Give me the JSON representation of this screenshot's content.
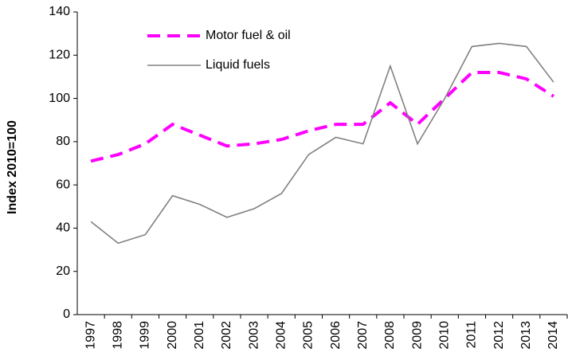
{
  "chart_data": {
    "type": "line",
    "y_label": "Index 2010=100",
    "categories": [
      "1997",
      "1998",
      "1999",
      "2000",
      "2001",
      "2002",
      "2003",
      "2004",
      "2005",
      "2006",
      "2007",
      "2008",
      "2009",
      "2010",
      "2011",
      "2012",
      "2013",
      "2014"
    ],
    "series": [
      {
        "name": "Motor fuel & oil",
        "color": "#ff00ff",
        "dashed": true,
        "values": [
          71,
          74,
          79,
          88,
          83,
          78,
          79,
          81,
          85,
          88,
          88,
          98,
          88,
          100,
          112,
          112,
          109,
          101
        ]
      },
      {
        "name": "Liquid fuels",
        "color": "#808080",
        "dashed": false,
        "values": [
          43,
          33,
          37,
          55,
          51,
          45,
          49,
          56,
          74,
          82,
          79,
          115,
          79,
          100,
          124,
          125.5,
          124,
          107.5
        ]
      }
    ],
    "ylim": [
      0,
      140
    ],
    "yticks": [
      0,
      20,
      40,
      60,
      80,
      100,
      120,
      140
    ],
    "grid": false,
    "legend": "top-left"
  }
}
